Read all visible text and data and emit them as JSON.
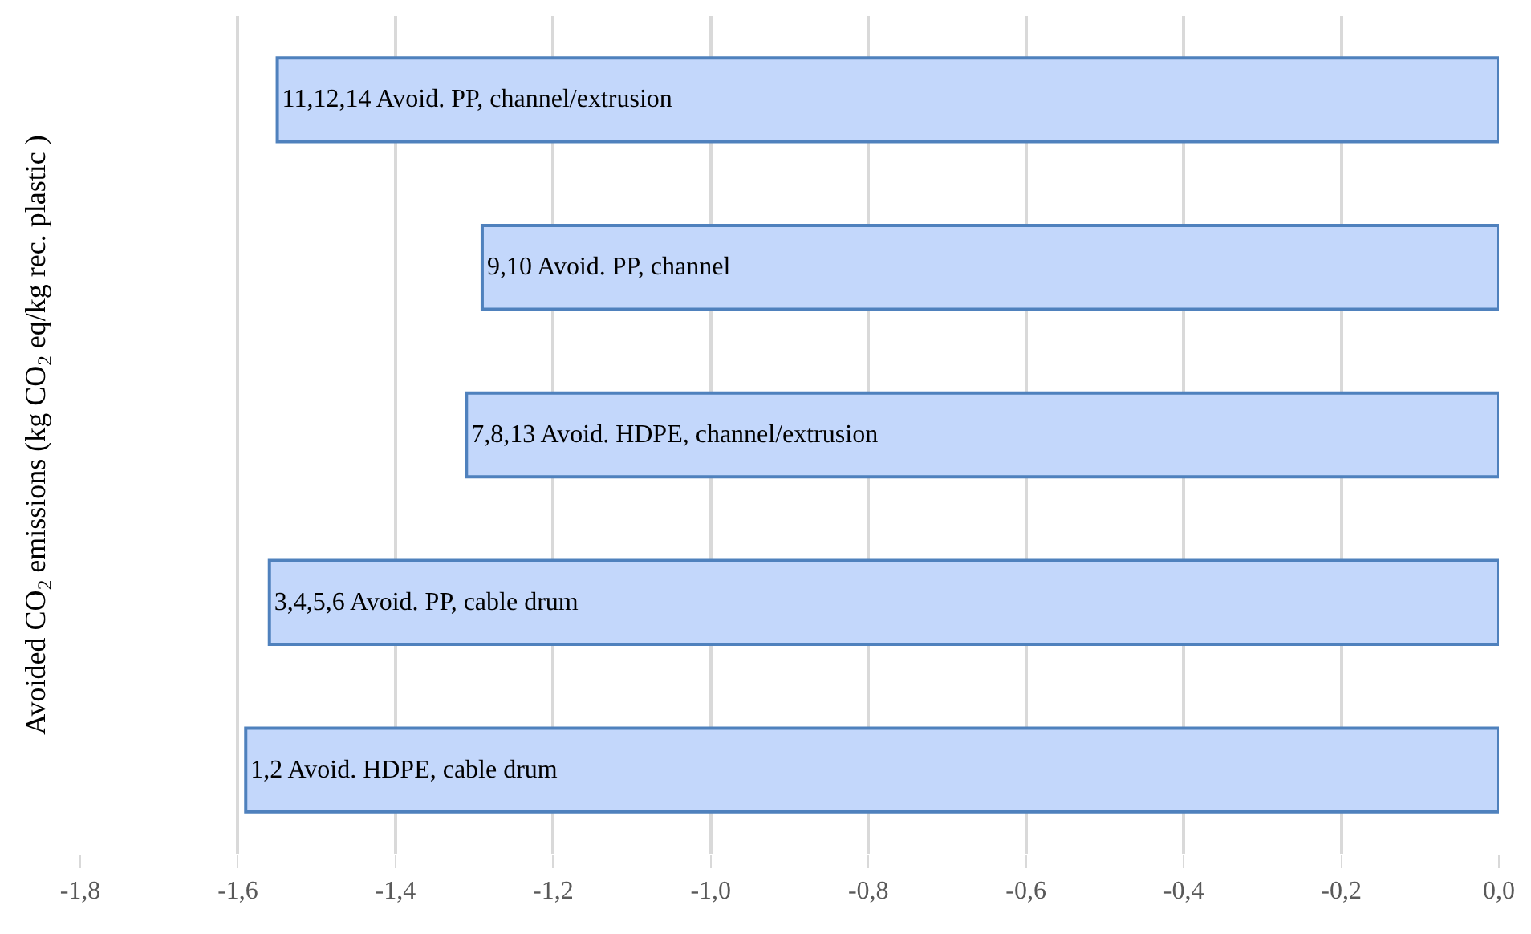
{
  "chart_data": {
    "type": "bar",
    "orientation": "horizontal",
    "ylabel": "Avoided CO$_{2}$ emissions (kg CO$_{2}$ eq/kg rec. plastic )",
    "categories": [
      "11,12,14 Avoid. PP, channel/extrusion",
      "9,10 Avoid. PP, channel",
      "7,8,13 Avoid. HDPE, channel/extrusion",
      "3,4,5,6 Avoid. PP, cable drum",
      "1,2 Avoid. HDPE, cable drum"
    ],
    "values": [
      -1.55,
      -1.29,
      -1.31,
      -1.56,
      -1.59
    ],
    "color": "#c3d7fb",
    "xlim": [
      -1.8,
      0.0
    ],
    "xticks": [
      {
        "value": -1.8,
        "label": "-1,8"
      },
      {
        "value": -1.6,
        "label": "-1,6"
      },
      {
        "value": -1.4,
        "label": "-1,4"
      },
      {
        "value": -1.2,
        "label": "-1,2"
      },
      {
        "value": -1.0,
        "label": "-1,0"
      },
      {
        "value": -0.8,
        "label": "-0,8"
      },
      {
        "value": -0.6,
        "label": "-0,6"
      },
      {
        "value": -0.4,
        "label": "-0,4"
      },
      {
        "value": -0.2,
        "label": "-0,2"
      },
      {
        "value": 0.0,
        "label": "0,0"
      }
    ],
    "grid": "x",
    "legend": false,
    "tick_labels": "x"
  }
}
